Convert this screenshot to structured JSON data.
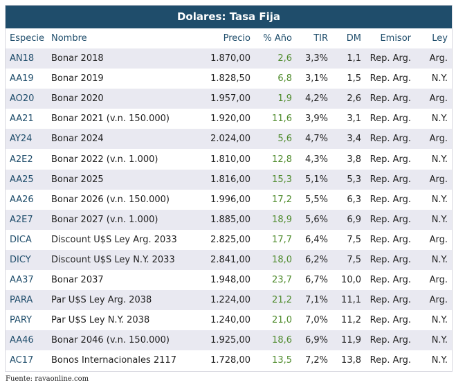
{
  "title": "Dolares: Tasa Fija",
  "table": {
    "header": [
      "Especie",
      "Nombre",
      "Precio",
      "% Año",
      "TIR",
      "DM",
      "Emisor",
      "Ley"
    ],
    "rows": [
      [
        "AN18",
        "Bonar 2018",
        "1.870,00",
        "2,6",
        "3,3%",
        "1,1",
        "Rep. Arg.",
        "Arg."
      ],
      [
        "AA19",
        "Bonar 2019",
        "1.828,50",
        "6,8",
        "3,1%",
        "1,5",
        "Rep. Arg.",
        "N.Y."
      ],
      [
        "AO20",
        "Bonar 2020",
        "1.957,00",
        "1,9",
        "4,2%",
        "2,6",
        "Rep. Arg.",
        "Arg."
      ],
      [
        "AA21",
        "Bonar 2021 (v.n. 150.000)",
        "1.920,00",
        "11,6",
        "3,9%",
        "3,1",
        "Rep. Arg.",
        "N.Y."
      ],
      [
        "AY24",
        "Bonar 2024",
        "2.024,00",
        "5,6",
        "4,7%",
        "3,4",
        "Rep. Arg.",
        "Arg."
      ],
      [
        "A2E2",
        "Bonar 2022 (v.n. 1.000)",
        "1.810,00",
        "12,8",
        "4,3%",
        "3,8",
        "Rep. Arg.",
        "N.Y."
      ],
      [
        "AA25",
        "Bonar 2025",
        "1.816,00",
        "15,3",
        "5,1%",
        "5,3",
        "Rep. Arg.",
        "Arg."
      ],
      [
        "AA26",
        "Bonar 2026 (v.n. 150.000)",
        "1.996,00",
        "17,2",
        "5,5%",
        "6,3",
        "Rep. Arg.",
        "N.Y."
      ],
      [
        "A2E7",
        "Bonar 2027 (v.n. 1.000)",
        "1.885,00",
        "18,9",
        "5,6%",
        "6,9",
        "Rep. Arg.",
        "N.Y."
      ],
      [
        "DICA",
        "Discount U$S Ley Arg. 2033",
        "2.825,00",
        "17,7",
        "6,4%",
        "7,5",
        "Rep. Arg.",
        "Arg."
      ],
      [
        "DICY",
        "Discount U$S Ley N.Y. 2033",
        "2.841,00",
        "18,0",
        "6,2%",
        "7,5",
        "Rep. Arg.",
        "N.Y."
      ],
      [
        "AA37",
        "Bonar 2037",
        "1.948,00",
        "23,7",
        "6,7%",
        "10,0",
        "Rep. Arg.",
        "Arg."
      ],
      [
        "PARA",
        "Par U$S Ley Arg. 2038",
        "1.224,00",
        "21,2",
        "7,1%",
        "11,1",
        "Rep. Arg.",
        "Arg."
      ],
      [
        "PARY",
        "Par U$S Ley N.Y. 2038",
        "1.240,00",
        "21,0",
        "7,0%",
        "11,2",
        "Rep. Arg.",
        "N.Y."
      ],
      [
        "AA46",
        "Bonar 2046 (v.n. 150.000)",
        "1.925,00",
        "18,6",
        "6,9%",
        "11,9",
        "Rep. Arg.",
        "N.Y."
      ],
      [
        "AC17",
        "Bonos Internacionales 2117",
        "1.728,00",
        "13,5",
        "7,2%",
        "13,8",
        "Rep. Arg.",
        "N.Y."
      ]
    ]
  },
  "source": "Fuente: ravaonline.com"
}
